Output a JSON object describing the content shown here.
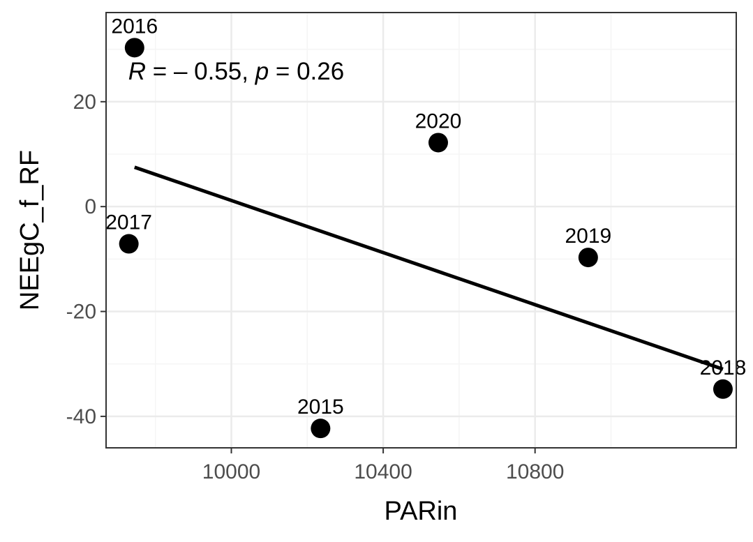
{
  "chart_data": {
    "type": "scatter",
    "xlabel": "PARin",
    "ylabel": "NEEgC_f_RF",
    "xlim": [
      9670,
      11330
    ],
    "ylim": [
      -46,
      37
    ],
    "x_ticks": [
      10000,
      10400,
      10800
    ],
    "y_ticks": [
      20,
      0,
      -20,
      -40
    ],
    "x_tick_labels": [
      "10000",
      "10400",
      "10800"
    ],
    "y_tick_labels": [
      "20",
      "0",
      "-20",
      "-40"
    ],
    "x_minor_ticks": [
      9800,
      10200,
      10600,
      11000
    ],
    "y_minor_ticks": [
      30,
      10,
      -10,
      -30
    ],
    "grid": true,
    "points": [
      {
        "label": "2016",
        "x": 9745,
        "y": 30.3
      },
      {
        "label": "2020",
        "x": 10545,
        "y": 12.2
      },
      {
        "label": "2017",
        "x": 9730,
        "y": -7.1
      },
      {
        "label": "2019",
        "x": 10940,
        "y": -9.7
      },
      {
        "label": "2018",
        "x": 11295,
        "y": -34.8
      },
      {
        "label": "2015",
        "x": 10235,
        "y": -42.3
      }
    ],
    "regression": {
      "x": [
        9745,
        11295
      ],
      "y": [
        7.5,
        -31.0
      ]
    },
    "annotation": {
      "r_symbol": "R",
      "r_value": " = – 0.55, ",
      "p_symbol": "p",
      "p_value": " = 0.26",
      "x": 9745,
      "y": 25.8
    },
    "colors": {
      "points": "#000000",
      "line": "#000000",
      "grid_major": "#ebebeb",
      "grid_minor": "#f5f5f5",
      "panel_border": "#333333"
    }
  }
}
